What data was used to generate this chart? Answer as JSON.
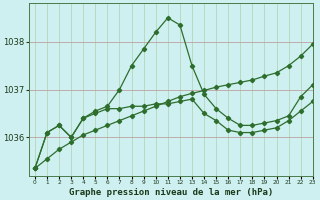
{
  "xlabel": "Graphe pression niveau de la mer (hPa)",
  "x": [
    0,
    1,
    2,
    3,
    4,
    5,
    6,
    7,
    8,
    9,
    10,
    11,
    12,
    13,
    14,
    15,
    16,
    17,
    18,
    19,
    20,
    21,
    22,
    23
  ],
  "volatile": [
    1035.35,
    1036.1,
    1036.25,
    1036.0,
    1036.4,
    1036.55,
    1036.65,
    1037.0,
    1037.5,
    1037.85,
    1038.2,
    1038.5,
    1038.35,
    1037.5,
    1036.9,
    1036.6,
    1036.4,
    1036.25,
    1036.25,
    1036.3,
    1036.35,
    1036.45,
    1036.85,
    1037.1
  ],
  "diagonal": [
    1035.35,
    1035.55,
    1035.75,
    1035.9,
    1036.05,
    1036.15,
    1036.25,
    1036.35,
    1036.45,
    1036.55,
    1036.65,
    1036.75,
    1036.85,
    1036.92,
    1036.98,
    1037.05,
    1037.1,
    1037.15,
    1037.2,
    1037.28,
    1037.35,
    1037.5,
    1037.7,
    1037.95
  ],
  "middle": [
    1035.35,
    1036.1,
    1036.25,
    1036.0,
    1036.4,
    1036.5,
    1036.6,
    1036.6,
    1036.65,
    1036.65,
    1036.7,
    1036.7,
    1036.75,
    1036.8,
    1036.5,
    1036.35,
    1036.15,
    1036.1,
    1036.1,
    1036.15,
    1036.2,
    1036.35,
    1036.55,
    1036.75
  ],
  "bg_color": "#cff0f0",
  "line_color": "#2d6e2d",
  "grid_h_color": "#c0a0a0",
  "grid_v_color": "#b0d0b0",
  "yticks": [
    1036,
    1037,
    1038
  ],
  "ylim": [
    1035.2,
    1038.8
  ],
  "xlim": [
    -0.5,
    23
  ]
}
